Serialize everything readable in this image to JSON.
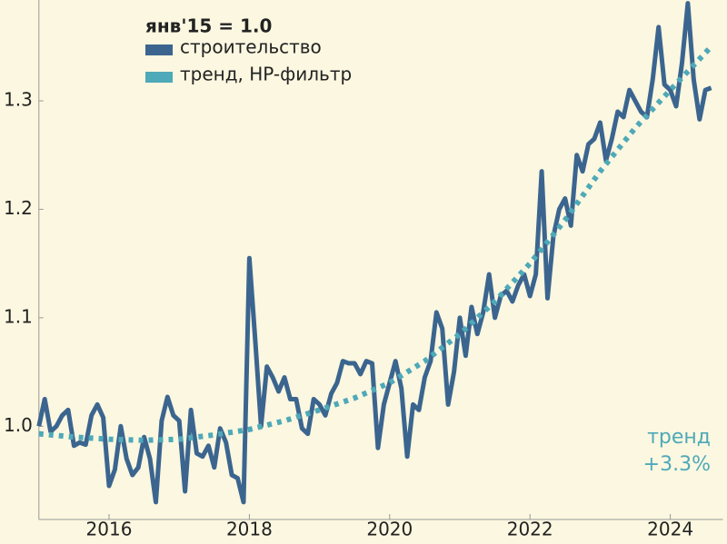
{
  "chart_data": {
    "type": "line",
    "annotations": [
      "янв'15 = 1.0",
      "тренд",
      "+3.3%"
    ],
    "xlim": [
      2015,
      2024.75
    ],
    "xticks": [
      2016,
      2018,
      2020,
      2022,
      2024
    ],
    "ylim": [
      0.914,
      1.393
    ],
    "yticks": [
      {
        "value": 1.0,
        "label": "1.0"
      },
      1.1,
      1.2,
      1.3
    ],
    "grid": false,
    "legend": "upper left",
    "series": [
      {
        "name": "строительство",
        "color": "#3b658f",
        "style": "solid",
        "x": [
          2015,
          2015.083,
          2015.167,
          2015.25,
          2015.333,
          2015.417,
          2015.5,
          2015.583,
          2015.667,
          2015.75,
          2015.833,
          2015.917,
          2016,
          2016.083,
          2016.167,
          2016.25,
          2016.333,
          2016.417,
          2016.5,
          2016.583,
          2016.667,
          2016.75,
          2016.833,
          2016.917,
          2017,
          2017.083,
          2017.167,
          2017.25,
          2017.333,
          2017.417,
          2017.5,
          2017.583,
          2017.667,
          2017.75,
          2017.833,
          2017.917,
          2018,
          2018.083,
          2018.167,
          2018.25,
          2018.333,
          2018.417,
          2018.5,
          2018.583,
          2018.667,
          2018.75,
          2018.833,
          2018.917,
          2019,
          2019.083,
          2019.167,
          2019.25,
          2019.333,
          2019.417,
          2019.5,
          2019.583,
          2019.667,
          2019.75,
          2019.833,
          2019.917,
          2020,
          2020.083,
          2020.167,
          2020.25,
          2020.333,
          2020.417,
          2020.5,
          2020.583,
          2020.667,
          2020.75,
          2020.833,
          2020.917,
          2021,
          2021.083,
          2021.167,
          2021.25,
          2021.333,
          2021.417,
          2021.5,
          2021.583,
          2021.667,
          2021.75,
          2021.833,
          2021.917,
          2022,
          2022.083,
          2022.167,
          2022.25,
          2022.333,
          2022.417,
          2022.5,
          2022.583,
          2022.667,
          2022.75,
          2022.833,
          2022.917,
          2023,
          2023.083,
          2023.167,
          2023.25,
          2023.333,
          2023.417,
          2023.5,
          2023.583,
          2023.667,
          2023.75,
          2023.833,
          2023.917,
          2024,
          2024.083,
          2024.167,
          2024.25,
          2024.333,
          2024.417,
          2024.5,
          2024.583
        ],
        "values": [
          1.0,
          1.025,
          0.995,
          1.0,
          1.01,
          1.015,
          0.982,
          0.985,
          0.983,
          1.01,
          1.02,
          1.008,
          0.945,
          0.96,
          1.0,
          0.97,
          0.955,
          0.962,
          0.99,
          0.97,
          0.93,
          1.005,
          1.027,
          1.01,
          1.005,
          0.94,
          1.015,
          0.975,
          0.972,
          0.982,
          0.962,
          0.998,
          0.985,
          0.955,
          0.952,
          0.93,
          1.155,
          1.08,
          1.0,
          1.055,
          1.045,
          1.032,
          1.045,
          1.025,
          1.025,
          0.998,
          0.993,
          1.025,
          1.02,
          1.01,
          1.03,
          1.04,
          1.06,
          1.058,
          1.058,
          1.048,
          1.06,
          1.058,
          0.98,
          1.02,
          1.04,
          1.06,
          1.035,
          0.972,
          1.02,
          1.015,
          1.045,
          1.06,
          1.105,
          1.09,
          1.02,
          1.05,
          1.1,
          1.065,
          1.11,
          1.085,
          1.105,
          1.14,
          1.1,
          1.12,
          1.125,
          1.115,
          1.13,
          1.14,
          1.12,
          1.14,
          1.235,
          1.118,
          1.175,
          1.2,
          1.21,
          1.185,
          1.25,
          1.235,
          1.26,
          1.265,
          1.28,
          1.245,
          1.265,
          1.29,
          1.285,
          1.31,
          1.3,
          1.29,
          1.285,
          1.32,
          1.368,
          1.315,
          1.31,
          1.295,
          1.335,
          1.39,
          1.32,
          1.283,
          1.31,
          1.312
        ]
      },
      {
        "name": "тренд, HP-фильтр",
        "color": "#4ea9b8",
        "style": "dotted",
        "x": [
          2015,
          2015.5,
          2016,
          2016.5,
          2017,
          2017.5,
          2018,
          2018.5,
          2019,
          2019.5,
          2020,
          2020.5,
          2021,
          2021.5,
          2022,
          2022.5,
          2023,
          2023.5,
          2024,
          2024.583
        ],
        "values": [
          0.993,
          0.99,
          0.988,
          0.987,
          0.988,
          0.992,
          0.997,
          1.005,
          1.015,
          1.026,
          1.04,
          1.06,
          1.085,
          1.115,
          1.15,
          1.19,
          1.235,
          1.275,
          1.31,
          1.35
        ]
      }
    ]
  }
}
